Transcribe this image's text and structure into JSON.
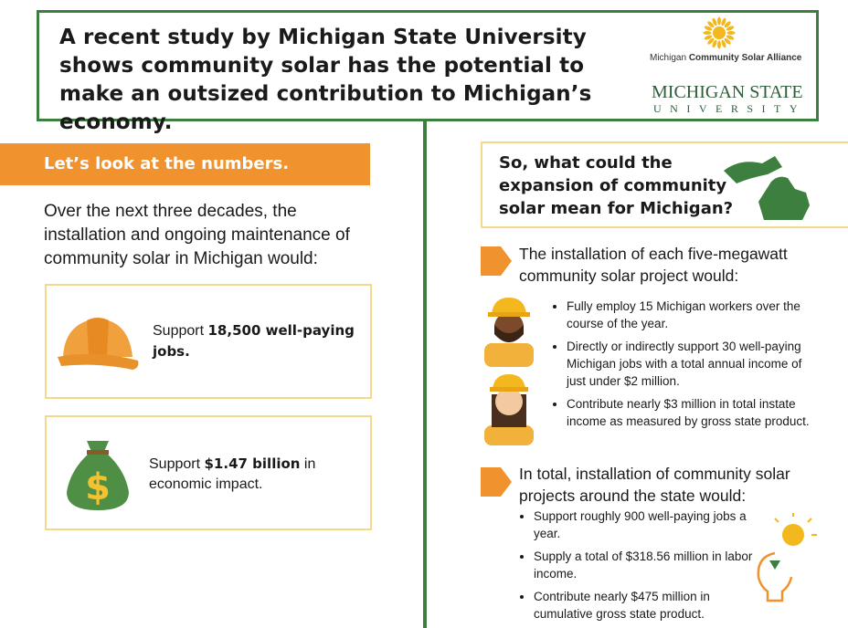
{
  "header": {
    "title": "A recent study by Michigan State University shows community solar has the potential to make an outsized contribution to Michigan’s economy.",
    "alliance": {
      "pre": "Michigan",
      "bold": "Community Solar Alliance"
    },
    "msu": {
      "line1": "MICHIGAN STATE",
      "line2": "UNIVERSITY"
    }
  },
  "left": {
    "banner": "Let’s look at the numbers.",
    "intro": "Over the next three decades, the installation and ongoing maintenance of community solar in Michigan would:",
    "cards": [
      {
        "pre": "Support",
        "bold": "18,500 well-paying jobs."
      },
      {
        "pre": "Support",
        "bold": "$1.47 billion",
        "post": "in economic impact."
      }
    ]
  },
  "right": {
    "question": "So, what could the expansion of community solar mean for Michigan?",
    "sections": [
      {
        "heading": "The installation of each five-megawatt community solar project would:",
        "bullets": [
          "Fully employ 15 Michigan workers over the course of the year.",
          "Directly or indirectly support 30 well-paying Michigan jobs with a total annual income of just under $2 million.",
          "Contribute nearly $3 million in total instate income as measured by gross state product."
        ]
      },
      {
        "heading": "In total, installation of community solar projects around the state would:",
        "bullets": [
          "Support roughly 900 well-paying jobs a year.",
          "Supply a total of $318.56 million in labor income.",
          "Contribute nearly $475 million in cumulative gross state product."
        ]
      }
    ]
  }
}
